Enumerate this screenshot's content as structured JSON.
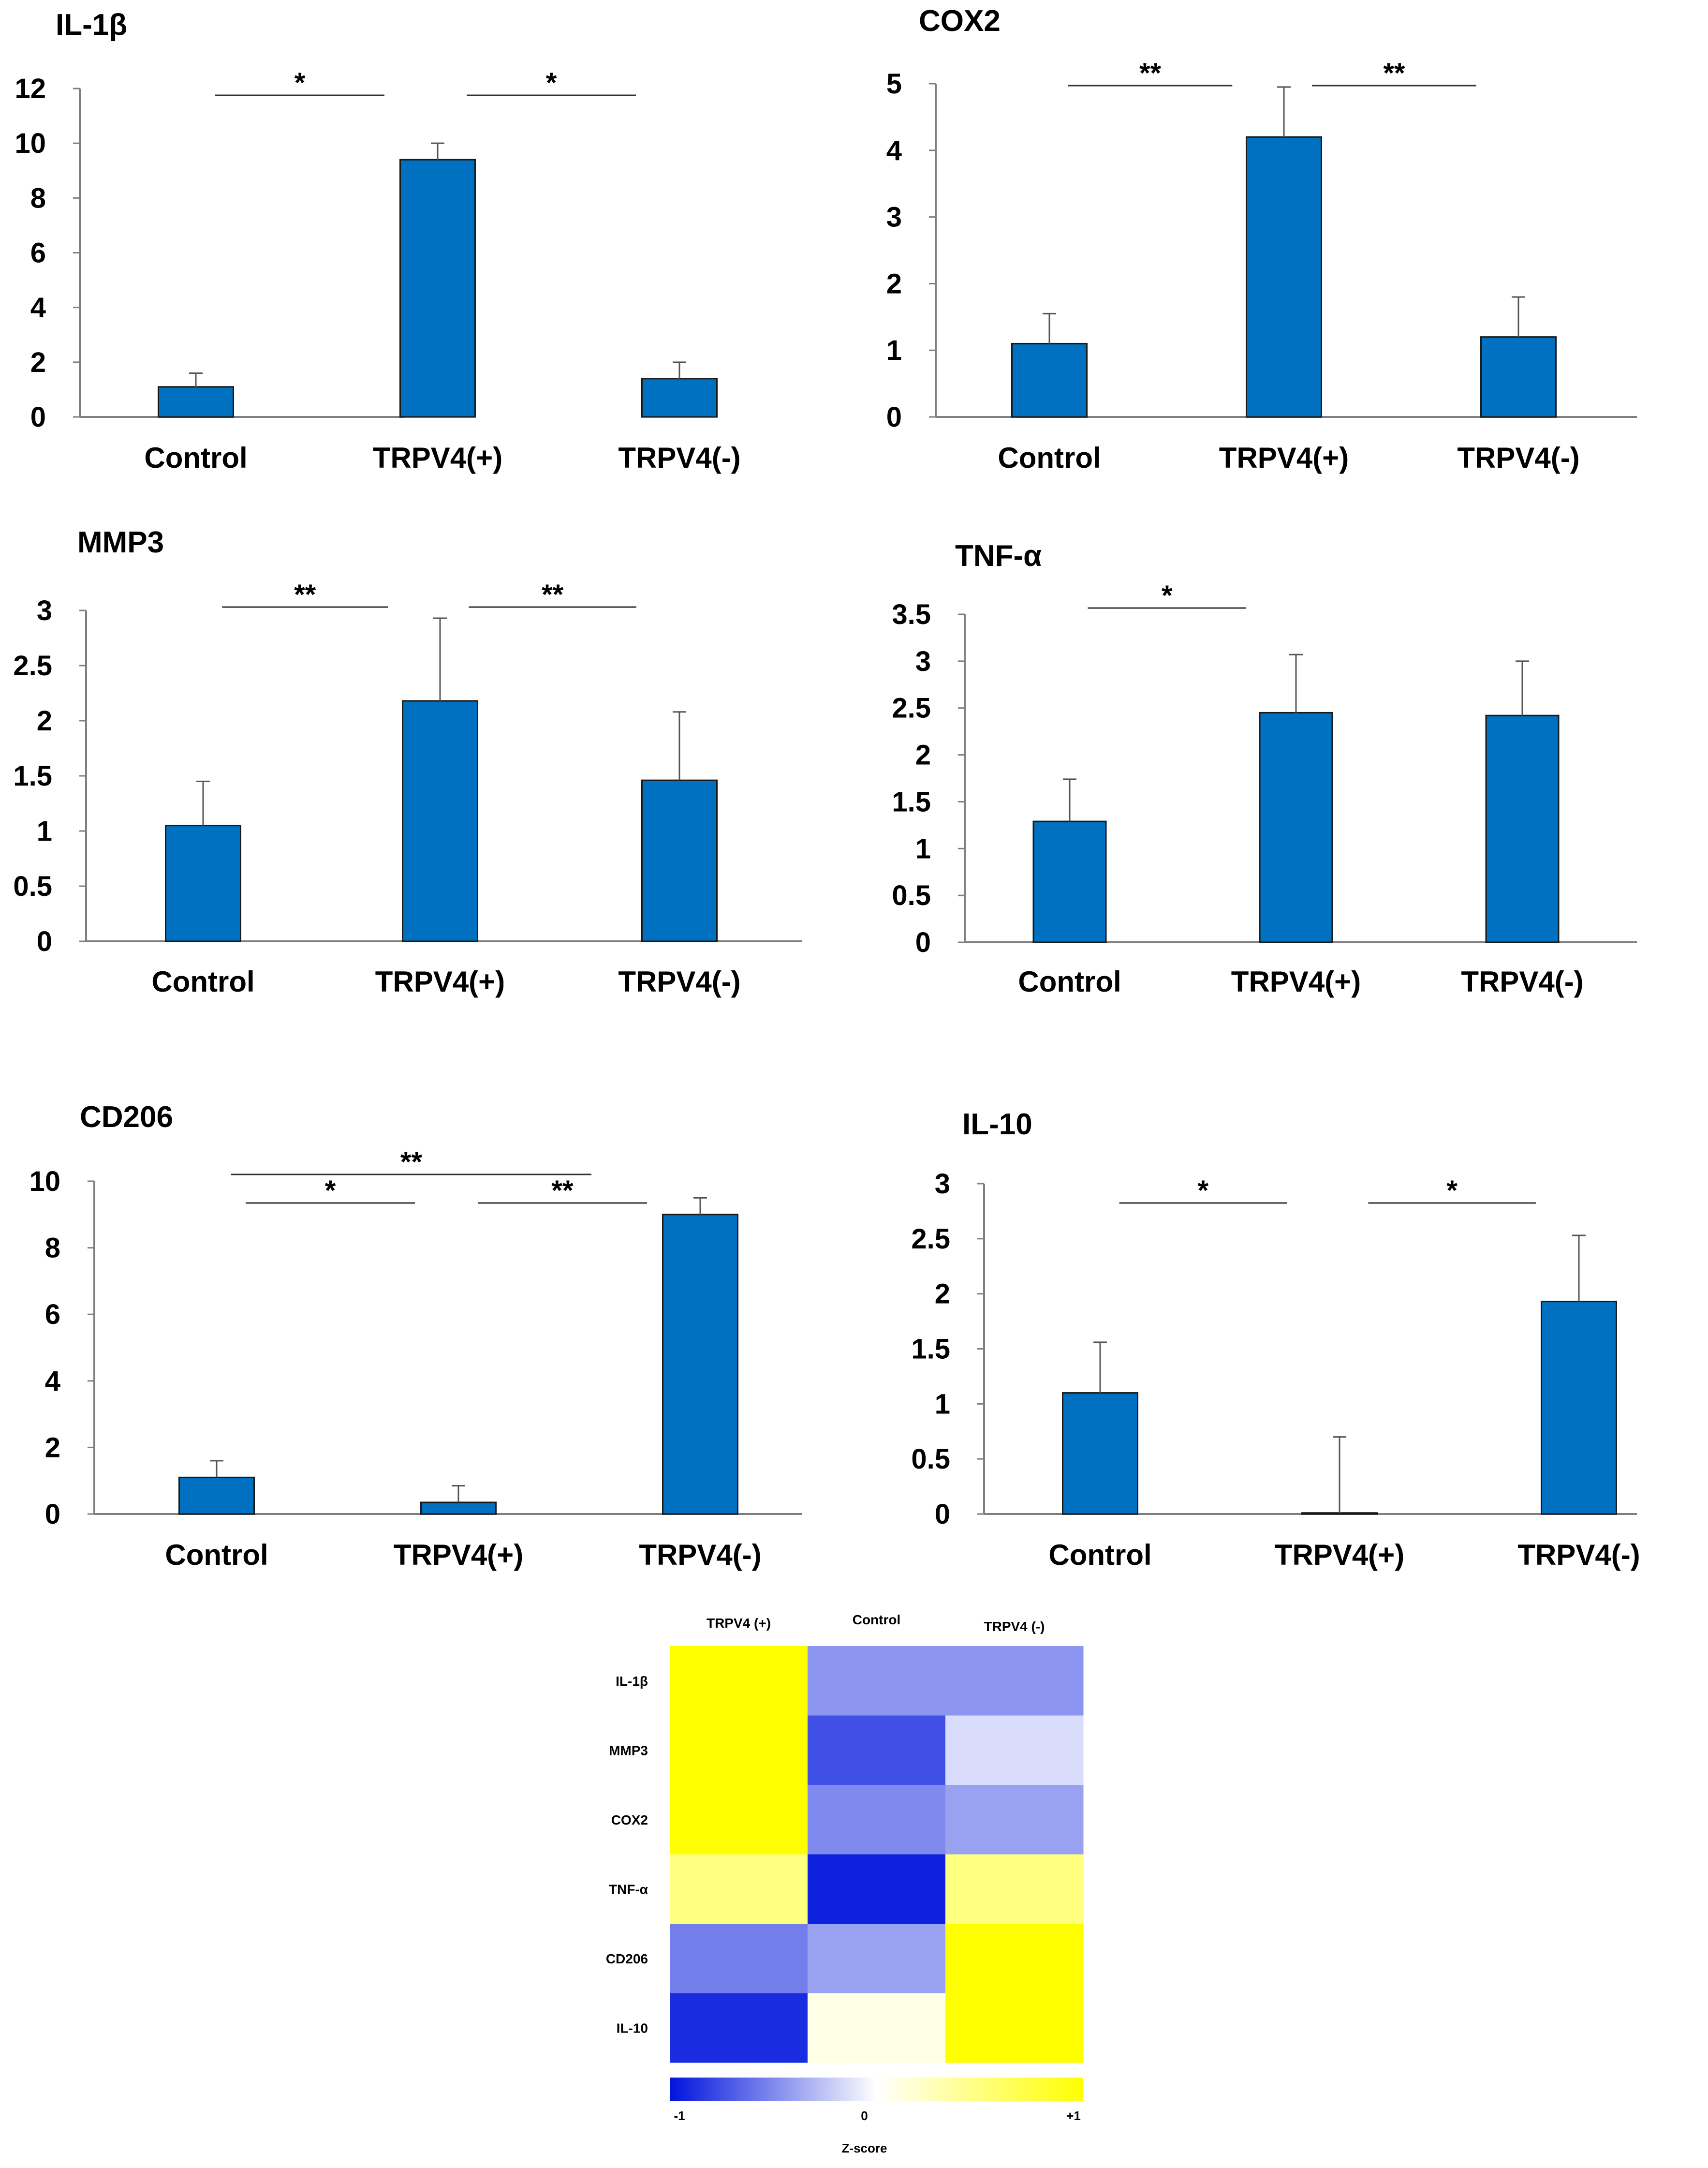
{
  "chart_data": [
    {
      "type": "bar",
      "title": "IL-1β",
      "categories": [
        "Control",
        "TRPV4(+)",
        "TRPV4(-)"
      ],
      "values": [
        1.1,
        9.4,
        1.4
      ],
      "errors": [
        0.5,
        0.6,
        0.6
      ],
      "ylim": [
        0,
        12
      ],
      "yticks": [
        "0",
        "2",
        "4",
        "6",
        "8",
        "10",
        "12"
      ],
      "significance": [
        {
          "from": 0,
          "to": 1,
          "label": "*"
        },
        {
          "from": 1,
          "to": 2,
          "label": "*"
        }
      ]
    },
    {
      "type": "bar",
      "title": "COX2",
      "categories": [
        "Control",
        "TRPV4(+)",
        "TRPV4(-)"
      ],
      "values": [
        1.1,
        4.2,
        1.2
      ],
      "errors": [
        0.45,
        0.75,
        0.6
      ],
      "ylim": [
        0,
        5
      ],
      "yticks": [
        "0",
        "1",
        "2",
        "3",
        "4",
        "5"
      ],
      "significance": [
        {
          "from": 0,
          "to": 1,
          "label": "**"
        },
        {
          "from": 1,
          "to": 2,
          "label": "**"
        }
      ]
    },
    {
      "type": "bar",
      "title": "MMP3",
      "categories": [
        "Control",
        "TRPV4(+)",
        "TRPV4(-)"
      ],
      "values": [
        1.05,
        2.18,
        1.46
      ],
      "errors": [
        0.4,
        0.75,
        0.62
      ],
      "ylim": [
        0,
        3
      ],
      "yticks": [
        "0",
        "0.5",
        "1",
        "1.5",
        "2",
        "2.5",
        "3"
      ],
      "significance": [
        {
          "from": 0,
          "to": 1,
          "label": "**"
        },
        {
          "from": 1,
          "to": 2,
          "label": "**"
        }
      ]
    },
    {
      "type": "bar",
      "title": "TNF-α",
      "categories": [
        "Control",
        "TRPV4(+)",
        "TRPV4(-)"
      ],
      "values": [
        1.29,
        2.45,
        2.42
      ],
      "errors": [
        0.45,
        0.62,
        0.58
      ],
      "ylim": [
        0,
        3.5
      ],
      "yticks": [
        "0",
        "0.5",
        "1",
        "1.5",
        "2",
        "2.5",
        "3",
        "3.5"
      ],
      "significance": [
        {
          "from": 0,
          "to": 1,
          "label": "*"
        }
      ]
    },
    {
      "type": "bar",
      "title": "CD206",
      "categories": [
        "Control",
        "TRPV4(+)",
        "TRPV4(-)"
      ],
      "values": [
        1.1,
        0.35,
        9.0
      ],
      "errors": [
        0.5,
        0.5,
        0.5
      ],
      "ylim": [
        0,
        10
      ],
      "yticks": [
        "0",
        "2",
        "4",
        "6",
        "8",
        "10"
      ],
      "significance": [
        {
          "from": 0,
          "to": 2,
          "label": "**"
        },
        {
          "from": 0,
          "to": 1,
          "label": "*"
        },
        {
          "from": 1,
          "to": 2,
          "label": "**"
        }
      ]
    },
    {
      "type": "bar",
      "title": "IL-10",
      "categories": [
        "Control",
        "TRPV4(+)",
        "TRPV4(-)"
      ],
      "values": [
        1.1,
        0.01,
        1.93
      ],
      "errors": [
        0.46,
        0.69,
        0.6
      ],
      "ylim": [
        0,
        3
      ],
      "yticks": [
        "0",
        "0.5",
        "1",
        "1.5",
        "2",
        "2.5",
        "3"
      ],
      "significance": [
        {
          "from": 0,
          "to": 1,
          "label": "*"
        },
        {
          "from": 1,
          "to": 2,
          "label": "*"
        }
      ]
    },
    {
      "type": "heatmap",
      "columns": [
        "TRPV4 (+)",
        "Control",
        "TRPV4 (-)"
      ],
      "rows": [
        "IL-1β",
        "MMP3",
        "COX2",
        "TNF-α",
        "CD206",
        "IL-10"
      ],
      "values": [
        [
          1.0,
          -0.45,
          -0.45
        ],
        [
          1.0,
          -0.75,
          -0.15
        ],
        [
          1.0,
          -0.5,
          -0.4
        ],
        [
          0.5,
          -0.95,
          0.5
        ],
        [
          -0.55,
          -0.4,
          1.0
        ],
        [
          -0.9,
          0.1,
          1.0
        ]
      ],
      "colorbar": {
        "min_label": "-1",
        "mid_label": "0",
        "max_label": "+1",
        "label": "Z-score"
      },
      "colors": {
        "low": "#0014dc",
        "mid": "#ffffff",
        "high": "#ffff00"
      }
    }
  ],
  "colors": {
    "bar": "#0070c0",
    "bar_edge": "#1a1a1a",
    "axis": "#7f7f7f"
  }
}
